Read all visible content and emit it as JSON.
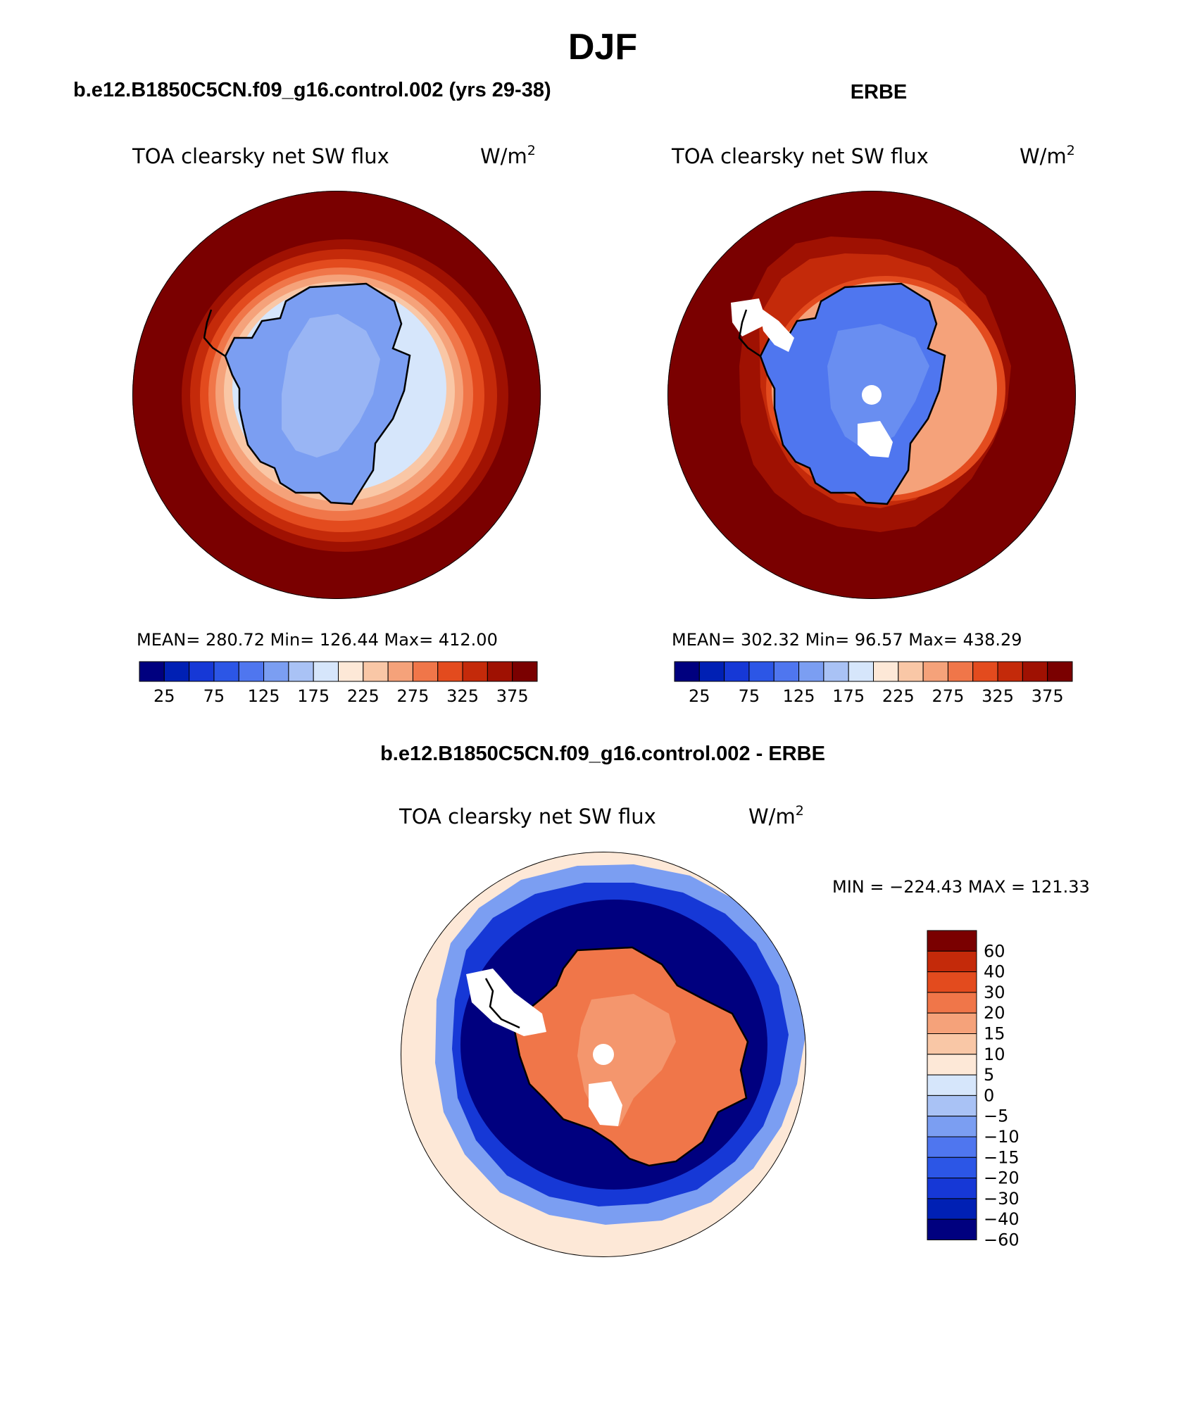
{
  "figure": {
    "title": "DJF"
  },
  "palette": {
    "abs": [
      "#00007f",
      "#0020b4",
      "#1638d6",
      "#2c56e6",
      "#4f76ef",
      "#7b9ef2",
      "#a9c2f5",
      "#d6e6fb",
      "#fde8d7",
      "#f9c7a6",
      "#f5a27a",
      "#f07649",
      "#e34b1e",
      "#c42a0a",
      "#9f1102",
      "#7a0000"
    ],
    "diff": [
      "#00007f",
      "#0020b4",
      "#1638d6",
      "#2c56e6",
      "#4f76ef",
      "#7b9ef2",
      "#a9c2f5",
      "#d6e6fb",
      "#fde8d7",
      "#f9c7a6",
      "#f5a27a",
      "#f07649",
      "#e34b1e",
      "#c42a0a",
      "#7a0000"
    ],
    "coastline": "#000000",
    "missing": "#ffffff"
  },
  "panels": [
    {
      "id": "model",
      "header": "b.e12.B1850C5CN.f09_g16.control.002 (yrs 29-38)",
      "variable": "TOA clearsky net SW flux",
      "units_base": "W/m",
      "units_sup": "2",
      "stats": "MEAN= 280.72   Min= 126.44   Max= 412.00",
      "colorbar_labels": [
        "25",
        "75",
        "125",
        "175",
        "225",
        "275",
        "325",
        "375"
      ],
      "fill": {
        "ocean": 15,
        "ring1": 14,
        "ring2": 13,
        "ring3": 12,
        "ring4": 11,
        "ring5": 10,
        "ring6": 9,
        "ring7": 7,
        "land": 5,
        "interior": 6
      }
    },
    {
      "id": "obs",
      "header": "ERBE",
      "variable": "TOA clearsky net SW flux",
      "units_base": "W/m",
      "units_sup": "2",
      "stats": "MEAN= 302.32   Min=   96.57   Max= 438.29",
      "colorbar_labels": [
        "25",
        "75",
        "125",
        "175",
        "225",
        "275",
        "325",
        "375"
      ],
      "fill": {
        "ocean": 15,
        "ring1": 14,
        "ring2": 13,
        "ring3": 12,
        "ring4": 10,
        "land": 4,
        "interior": 5
      }
    },
    {
      "id": "diff",
      "header": "b.e12.B1850C5CN.f09_g16.control.002 - ERBE",
      "variable": "TOA clearsky net SW flux",
      "units_base": "W/m",
      "units_sup": "2",
      "minmax": "MIN = −224.43 MAX = 121.33",
      "colorbar_labels": [
        "60",
        "40",
        "30",
        "20",
        "15",
        "10",
        "5",
        "0",
        "−5",
        "−10",
        "−15",
        "−20",
        "−30",
        "−40",
        "−60"
      ],
      "fill": {
        "outer": 8,
        "ring_light": 5,
        "ring_mid": 2,
        "ring_dark": 0,
        "land": 11,
        "land_inner": 10
      }
    }
  ]
}
